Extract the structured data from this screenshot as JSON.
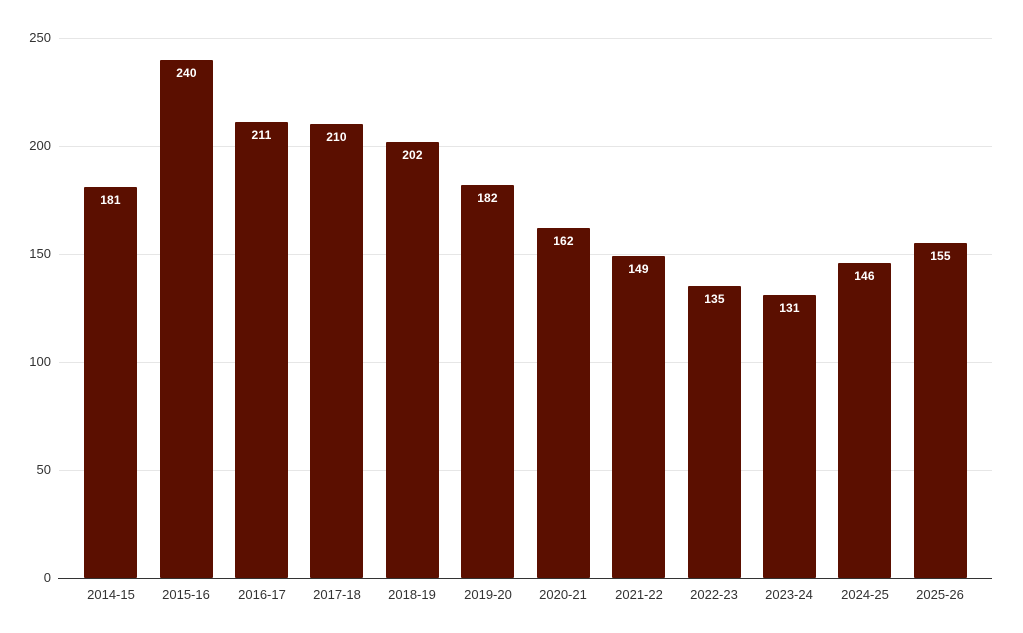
{
  "chart_data": {
    "type": "bar",
    "title": "",
    "xlabel": "",
    "ylabel": "",
    "categories": [
      "2014-15",
      "2015-16",
      "2016-17",
      "2017-18",
      "2018-19",
      "2019-20",
      "2020-21",
      "2021-22",
      "2022-23",
      "2023-24",
      "2024-25",
      "2025-26"
    ],
    "values": [
      181,
      240,
      211,
      210,
      202,
      182,
      162,
      149,
      135,
      131,
      146,
      155
    ],
    "bar_labels": [
      "181",
      "240",
      "211",
      "210",
      "202",
      "182",
      "162",
      "149",
      "135",
      "131",
      "146",
      "155"
    ],
    "ylim": [
      0,
      250
    ],
    "yticks": [
      0,
      50,
      100,
      150,
      200,
      250
    ],
    "grid": true,
    "legend_position": "none",
    "colors": {
      "bar": "#5b0f00",
      "bar_value_label": "#ffffff",
      "axis_label": "#333333",
      "gridline": "#e6e6e6",
      "axis_line": "#333333",
      "background": "#ffffff"
    }
  }
}
